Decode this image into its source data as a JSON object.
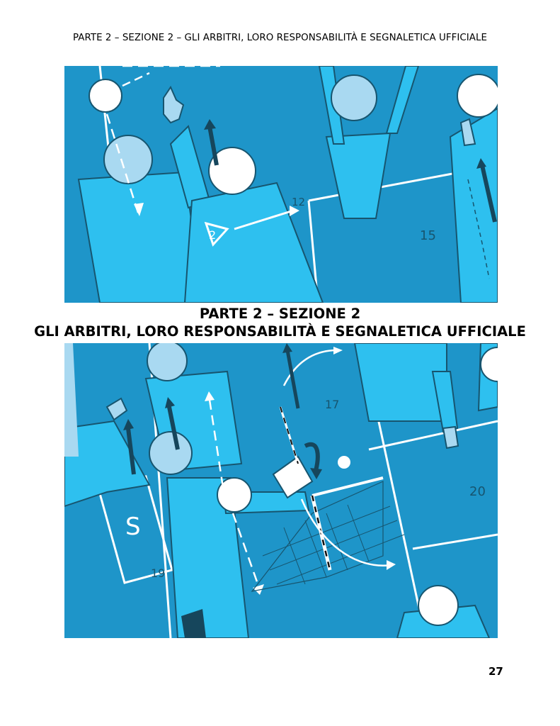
{
  "header": {
    "running_title": "PARTE 2 – SEZIONE 2 – GLI ARBITRI, LORO RESPONSABILITÀ E SEGNALETICA UFFICIALE"
  },
  "section": {
    "title_line_1": "PARTE 2 – SEZIONE 2",
    "title_line_2": "GLI ARBITRI, LORO RESPONSABILITÀ E SEGNALETICA UFFICIALE"
  },
  "illustration_top": {
    "labels": {
      "pos_12": "12",
      "pos_2": "2",
      "pos_15": "15"
    }
  },
  "illustration_bottom": {
    "labels": {
      "pos_17": "17",
      "pos_20": "20",
      "pos_19": "19",
      "substitution_zone": "S"
    }
  },
  "footer": {
    "page_number": "27"
  },
  "colors": {
    "court_dark": "#1e95c9",
    "court_light": "#22b6e7",
    "figure_light": "#2ec0ef",
    "head_light": "#a9d9f1",
    "line_dark": "#17556f",
    "arrow_dark": "#16465c"
  }
}
